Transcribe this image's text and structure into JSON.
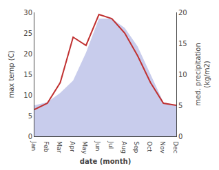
{
  "chart_data": {
    "type": "line",
    "xlabel": "date (month)",
    "ylabel": "max temp (C)",
    "y2label": "med. precipitation\n(kg/m2)",
    "categories": [
      "Jan",
      "Feb",
      "Mar",
      "Apr",
      "May",
      "Jun",
      "Jul",
      "Aug",
      "Sep",
      "Oct",
      "Nov",
      "Dec"
    ],
    "series": [
      {
        "type": "area",
        "axis": "y2",
        "color": "#c8ccec",
        "values": [
          5.0,
          5.5,
          7.0,
          9.0,
          13.5,
          19.0,
          19.0,
          17.5,
          14.5,
          10.0,
          5.5,
          5.0
        ]
      },
      {
        "type": "line",
        "color": "#c03030",
        "values": [
          6.5,
          8.0,
          13.0,
          24.0,
          22.0,
          29.5,
          28.5,
          25.0,
          19.5,
          13.0,
          8.0,
          7.5
        ]
      }
    ],
    "ylim": [
      0,
      30
    ],
    "yticks": [
      0,
      5,
      10,
      15,
      20,
      25,
      30
    ],
    "y2lim": [
      0,
      20
    ],
    "y2ticks": [
      0,
      5,
      10,
      15,
      20
    ],
    "grid": false
  }
}
